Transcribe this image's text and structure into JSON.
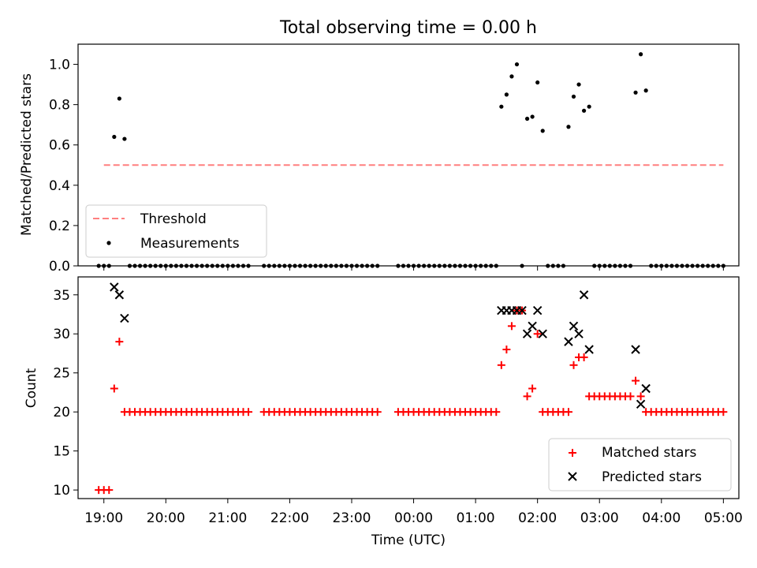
{
  "figure": {
    "title": "Total observing time = 0.00 h",
    "xlabel": "Time (UTC)"
  },
  "colors": {
    "threshold": "#ff7f7f",
    "measurement": "#000000",
    "matched": "#ff0000",
    "predicted": "#000000"
  },
  "chart_data": [
    {
      "type": "scatter",
      "panel": "top",
      "title": "Total observing time = 0.00 h",
      "xlabel": "",
      "ylabel": "Matched/Predicted stars",
      "ylim": [
        0,
        1.1
      ],
      "yticks": [
        0.0,
        0.2,
        0.4,
        0.6,
        0.8,
        1.0
      ],
      "ytick_labels": [
        "0.0",
        "0.2",
        "0.4",
        "0.6",
        "0.8",
        "1.0"
      ],
      "xlim": [
        "18:35",
        "05:15"
      ],
      "xticks": [
        "19:00",
        "20:00",
        "21:00",
        "22:00",
        "23:00",
        "00:00",
        "01:00",
        "02:00",
        "03:00",
        "04:00",
        "05:00"
      ],
      "legend": {
        "position": "lower left",
        "entries": [
          "Threshold",
          "Measurements"
        ]
      },
      "threshold": {
        "name": "Threshold",
        "value": 0.5,
        "x_start": "19:00",
        "x_end": "05:00"
      },
      "measurements": {
        "name": "Measurements",
        "nonzero": [
          [
            "19:10",
            0.64
          ],
          [
            "19:15",
            0.83
          ],
          [
            "19:20",
            0.63
          ],
          [
            "01:25",
            0.79
          ],
          [
            "01:30",
            0.85
          ],
          [
            "01:35",
            0.94
          ],
          [
            "01:40",
            1.0
          ],
          [
            "01:50",
            0.73
          ],
          [
            "01:55",
            0.74
          ],
          [
            "02:00",
            0.91
          ],
          [
            "02:05",
            0.67
          ],
          [
            "02:30",
            0.69
          ],
          [
            "02:35",
            0.84
          ],
          [
            "02:40",
            0.9
          ],
          [
            "02:45",
            0.77
          ],
          [
            "02:50",
            0.79
          ],
          [
            "03:35",
            0.86
          ],
          [
            "03:40",
            1.05
          ],
          [
            "03:45",
            0.87
          ]
        ],
        "zero": {
          "value": 0.0,
          "x": [
            "18:55",
            "19:00",
            "19:05",
            "19:25",
            "19:30",
            "19:35",
            "19:40",
            "19:45",
            "19:50",
            "19:55",
            "20:00",
            "20:05",
            "20:10",
            "20:15",
            "20:20",
            "20:25",
            "20:30",
            "20:35",
            "20:40",
            "20:45",
            "20:50",
            "20:55",
            "21:00",
            "21:05",
            "21:10",
            "21:15",
            "21:20",
            "21:35",
            "21:40",
            "21:45",
            "21:50",
            "21:55",
            "22:00",
            "22:05",
            "22:10",
            "22:15",
            "22:20",
            "22:25",
            "22:30",
            "22:35",
            "22:40",
            "22:45",
            "22:50",
            "22:55",
            "23:00",
            "23:05",
            "23:10",
            "23:15",
            "23:20",
            "23:25",
            "23:45",
            "23:50",
            "23:55",
            "00:00",
            "00:05",
            "00:10",
            "00:15",
            "00:20",
            "00:25",
            "00:30",
            "00:35",
            "00:40",
            "00:45",
            "00:50",
            "00:55",
            "01:00",
            "01:05",
            "01:10",
            "01:15",
            "01:20",
            "01:45",
            "02:10",
            "02:15",
            "02:20",
            "02:25",
            "02:55",
            "03:00",
            "03:05",
            "03:10",
            "03:15",
            "03:20",
            "03:25",
            "03:30",
            "03:50",
            "03:55",
            "04:00",
            "04:05",
            "04:10",
            "04:15",
            "04:20",
            "04:25",
            "04:30",
            "04:35",
            "04:40",
            "04:45",
            "04:50",
            "04:55",
            "05:00"
          ]
        }
      }
    },
    {
      "type": "scatter",
      "panel": "bottom",
      "xlabel": "Time (UTC)",
      "ylabel": "Count",
      "ylim": [
        8.9,
        37.3
      ],
      "yticks": [
        10,
        15,
        20,
        25,
        30,
        35
      ],
      "ytick_labels": [
        "10",
        "15",
        "20",
        "25",
        "30",
        "35"
      ],
      "xlim": [
        "18:35",
        "05:15"
      ],
      "xticks": [
        "19:00",
        "20:00",
        "21:00",
        "22:00",
        "23:00",
        "00:00",
        "01:00",
        "02:00",
        "03:00",
        "04:00",
        "05:00"
      ],
      "xtick_labels": [
        "19:00",
        "20:00",
        "21:00",
        "22:00",
        "23:00",
        "00:00",
        "01:00",
        "02:00",
        "03:00",
        "04:00",
        "05:00"
      ],
      "legend": {
        "position": "lower right",
        "entries": [
          "Matched stars",
          "Predicted stars"
        ]
      },
      "series": [
        {
          "name": "Matched stars",
          "marker": "plus",
          "nonbaseline": [
            [
              "18:55",
              10
            ],
            [
              "19:00",
              10
            ],
            [
              "19:05",
              10
            ],
            [
              "19:10",
              23
            ],
            [
              "19:15",
              29
            ],
            [
              "01:25",
              26
            ],
            [
              "01:30",
              28
            ],
            [
              "01:35",
              31
            ],
            [
              "01:40",
              33
            ],
            [
              "01:45",
              33
            ],
            [
              "01:50",
              22
            ],
            [
              "01:55",
              23
            ],
            [
              "02:00",
              30
            ],
            [
              "02:35",
              26
            ],
            [
              "02:40",
              27
            ],
            [
              "02:45",
              27
            ],
            [
              "02:50",
              22
            ],
            [
              "02:55",
              22
            ],
            [
              "03:00",
              22
            ],
            [
              "03:05",
              22
            ],
            [
              "03:10",
              22
            ],
            [
              "03:15",
              22
            ],
            [
              "03:20",
              22
            ],
            [
              "03:25",
              22
            ],
            [
              "03:30",
              22
            ],
            [
              "03:35",
              24
            ],
            [
              "03:40",
              22
            ]
          ],
          "baseline": {
            "value": 20,
            "x": [
              "19:20",
              "19:25",
              "19:30",
              "19:35",
              "19:40",
              "19:45",
              "19:50",
              "19:55",
              "20:00",
              "20:05",
              "20:10",
              "20:15",
              "20:20",
              "20:25",
              "20:30",
              "20:35",
              "20:40",
              "20:45",
              "20:50",
              "20:55",
              "21:00",
              "21:05",
              "21:10",
              "21:15",
              "21:20",
              "21:35",
              "21:40",
              "21:45",
              "21:50",
              "21:55",
              "22:00",
              "22:05",
              "22:10",
              "22:15",
              "22:20",
              "22:25",
              "22:30",
              "22:35",
              "22:40",
              "22:45",
              "22:50",
              "22:55",
              "23:00",
              "23:05",
              "23:10",
              "23:15",
              "23:20",
              "23:25",
              "23:45",
              "23:50",
              "23:55",
              "00:00",
              "00:05",
              "00:10",
              "00:15",
              "00:20",
              "00:25",
              "00:30",
              "00:35",
              "00:40",
              "00:45",
              "00:50",
              "00:55",
              "01:00",
              "01:05",
              "01:10",
              "01:15",
              "01:20",
              "02:05",
              "02:10",
              "02:15",
              "02:20",
              "02:25",
              "02:30",
              "03:45",
              "03:50",
              "03:55",
              "04:00",
              "04:05",
              "04:10",
              "04:15",
              "04:20",
              "04:25",
              "04:30",
              "04:35",
              "04:40",
              "04:45",
              "04:50",
              "04:55",
              "05:00"
            ]
          }
        },
        {
          "name": "Predicted stars",
          "marker": "x",
          "points": [
            [
              "19:10",
              36
            ],
            [
              "19:15",
              35
            ],
            [
              "19:20",
              32
            ],
            [
              "01:25",
              33
            ],
            [
              "01:30",
              33
            ],
            [
              "01:35",
              33
            ],
            [
              "01:40",
              33
            ],
            [
              "01:45",
              33
            ],
            [
              "01:50",
              30
            ],
            [
              "01:55",
              31
            ],
            [
              "02:00",
              33
            ],
            [
              "02:05",
              30
            ],
            [
              "02:30",
              29
            ],
            [
              "02:35",
              31
            ],
            [
              "02:40",
              30
            ],
            [
              "02:45",
              35
            ],
            [
              "02:50",
              28
            ],
            [
              "03:35",
              28
            ],
            [
              "03:40",
              21
            ],
            [
              "03:45",
              23
            ]
          ]
        }
      ]
    }
  ]
}
